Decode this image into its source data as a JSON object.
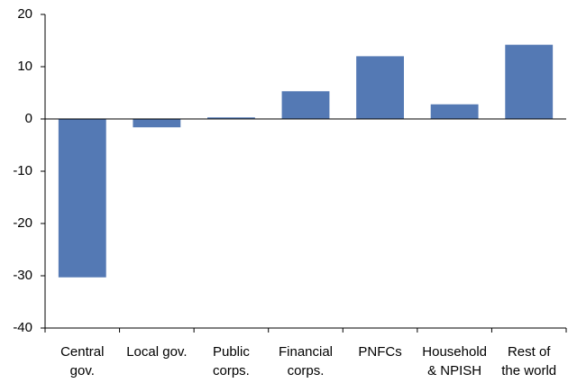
{
  "chart_data": {
    "type": "bar",
    "categories": [
      [
        "Central",
        "gov."
      ],
      [
        "Local gov."
      ],
      [
        "Public",
        "corps."
      ],
      [
        "Financial",
        "corps."
      ],
      [
        "PNFCs"
      ],
      [
        "Household",
        "& NPISH"
      ],
      [
        "Rest of",
        "the world"
      ]
    ],
    "values": [
      -30.3,
      -1.6,
      0.3,
      5.3,
      12.0,
      2.8,
      14.2
    ],
    "color": "#5479b4",
    "ylim": [
      -40,
      20
    ],
    "yticks": [
      -40,
      -30,
      -20,
      -10,
      0,
      10,
      20
    ],
    "grid": false
  }
}
